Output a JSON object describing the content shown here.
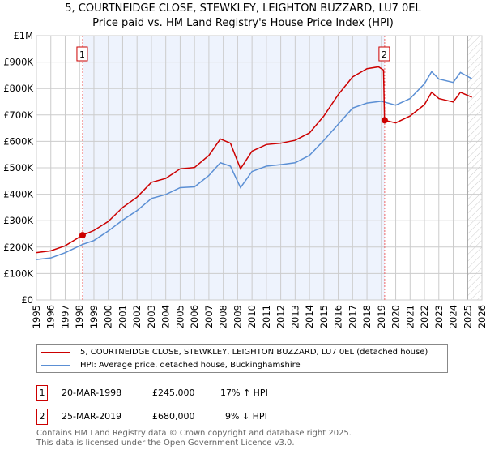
{
  "title_line1": "5, COURTNEIDGE CLOSE, STEWKLEY, LEIGHTON BUZZARD, LU7 0EL",
  "title_line2": "Price paid vs. HM Land Registry's House Price Index (HPI)",
  "chart_data": {
    "type": "line",
    "ylim": [
      0,
      1000000
    ],
    "xlim": [
      1995,
      2026
    ],
    "yticks": [
      {
        "v": 0,
        "label": "£0"
      },
      {
        "v": 100000,
        "label": "£100K"
      },
      {
        "v": 200000,
        "label": "£200K"
      },
      {
        "v": 300000,
        "label": "£300K"
      },
      {
        "v": 400000,
        "label": "£400K"
      },
      {
        "v": 500000,
        "label": "£500K"
      },
      {
        "v": 600000,
        "label": "£600K"
      },
      {
        "v": 700000,
        "label": "£700K"
      },
      {
        "v": 800000,
        "label": "£800K"
      },
      {
        "v": 900000,
        "label": "£900K"
      },
      {
        "v": 1000000,
        "label": "£1M"
      }
    ],
    "xticks": [
      "1995",
      "1996",
      "1997",
      "1998",
      "1999",
      "2000",
      "2001",
      "2002",
      "2003",
      "2004",
      "2005",
      "2006",
      "2007",
      "2008",
      "2009",
      "2010",
      "2011",
      "2012",
      "2013",
      "2014",
      "2015",
      "2016",
      "2017",
      "2018",
      "2019",
      "2020",
      "2021",
      "2022",
      "2023",
      "2024",
      "2025",
      "2026"
    ],
    "series": [
      {
        "name": "5, COURTNEIDGE CLOSE, STEWKLEY, LEIGHTON BUZZARD, LU7 0EL (detached house)",
        "color": "#cc0000",
        "x": [
          1995,
          1996,
          1997,
          1998.2,
          1999,
          2000,
          2001,
          2002,
          2003,
          2004,
          2005,
          2006,
          2007,
          2007.8,
          2008.5,
          2009.2,
          2010,
          2011,
          2012,
          2013,
          2014,
          2015,
          2016,
          2017,
          2018,
          2018.8,
          2019.15,
          2019.22,
          2020,
          2021,
          2022,
          2022.5,
          2023,
          2024,
          2024.5,
          2025.3
        ],
        "y": [
          179000,
          186000,
          205000,
          245000,
          263000,
          297000,
          350000,
          389000,
          445000,
          460000,
          496000,
          501000,
          547000,
          609000,
          593000,
          496000,
          563000,
          588000,
          593000,
          604000,
          632000,
          696000,
          777000,
          844000,
          875000,
          882000,
          870000,
          680000,
          670000,
          696000,
          739000,
          786000,
          762000,
          749000,
          786000,
          767000
        ]
      },
      {
        "name": "HPI: Average price, detached house, Buckinghamshire",
        "color": "#5b8fd4",
        "x": [
          1995,
          1996,
          1997,
          1998.2,
          1999,
          2000,
          2001,
          2002,
          2003,
          2004,
          2005,
          2006,
          2007,
          2007.8,
          2008.5,
          2009.2,
          2010,
          2011,
          2012,
          2013,
          2014,
          2015,
          2016,
          2017,
          2018,
          2019,
          2020,
          2021,
          2022,
          2022.5,
          2023,
          2024,
          2024.5,
          2025.3
        ],
        "y": [
          153000,
          159000,
          179000,
          210000,
          225000,
          261000,
          302000,
          338000,
          384000,
          399000,
          425000,
          428000,
          471000,
          519000,
          506000,
          425000,
          486000,
          506000,
          512000,
          519000,
          547000,
          604000,
          665000,
          726000,
          745000,
          752000,
          737000,
          762000,
          818000,
          864000,
          836000,
          823000,
          861000,
          837000
        ]
      }
    ],
    "sales": [
      {
        "label": "1",
        "x": 1998.21,
        "y": 245000
      },
      {
        "label": "2",
        "x": 2019.23,
        "y": 680000
      }
    ],
    "shaded_range": [
      1998.21,
      2019.23
    ],
    "hatched_from": 2025.0
  },
  "legend": {
    "red": "5, COURTNEIDGE CLOSE, STEWKLEY, LEIGHTON BUZZARD, LU7 0EL (detached house)",
    "blue": "HPI: Average price, detached house, Buckinghamshire"
  },
  "transactions": [
    {
      "num": "1",
      "date": "20-MAR-1998",
      "price": "£245,000",
      "hpi": "17% ↑ HPI"
    },
    {
      "num": "2",
      "date": "25-MAR-2019",
      "price": "£680,000",
      "hpi": "9% ↓ HPI"
    }
  ],
  "footer": {
    "line1": "Contains HM Land Registry data © Crown copyright and database right 2025.",
    "line2": "This data is licensed under the Open Government Licence v3.0."
  }
}
